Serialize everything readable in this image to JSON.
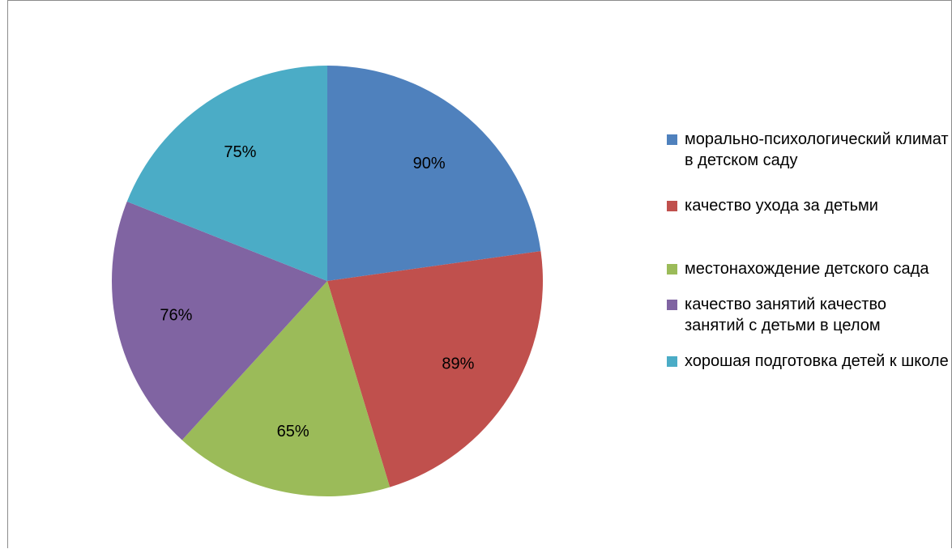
{
  "chart_data": {
    "type": "pie",
    "title": "",
    "legend_position": "right",
    "categories": [
      "морально-психологический климат в детском саду",
      "качество ухода за детьми",
      "местонахождение детского сада",
      "качество занятий качество занятий с детьми в целом",
      "хорошая подготовка детей к школе"
    ],
    "values": [
      90,
      89,
      65,
      76,
      75
    ],
    "data_labels": [
      "90%",
      "89%",
      "65%",
      "76%",
      "75%"
    ],
    "colors": [
      "#4f81bd",
      "#c0504d",
      "#9bbb59",
      "#8064a2",
      "#4bacc6"
    ]
  },
  "legend": {
    "items": [
      "морально-психологический климат в детском саду",
      "качество ухода за детьми",
      "местонахождение детского сада",
      "качество занятий качество занятий с детьми в целом",
      "хорошая подготовка детей к школе"
    ]
  }
}
